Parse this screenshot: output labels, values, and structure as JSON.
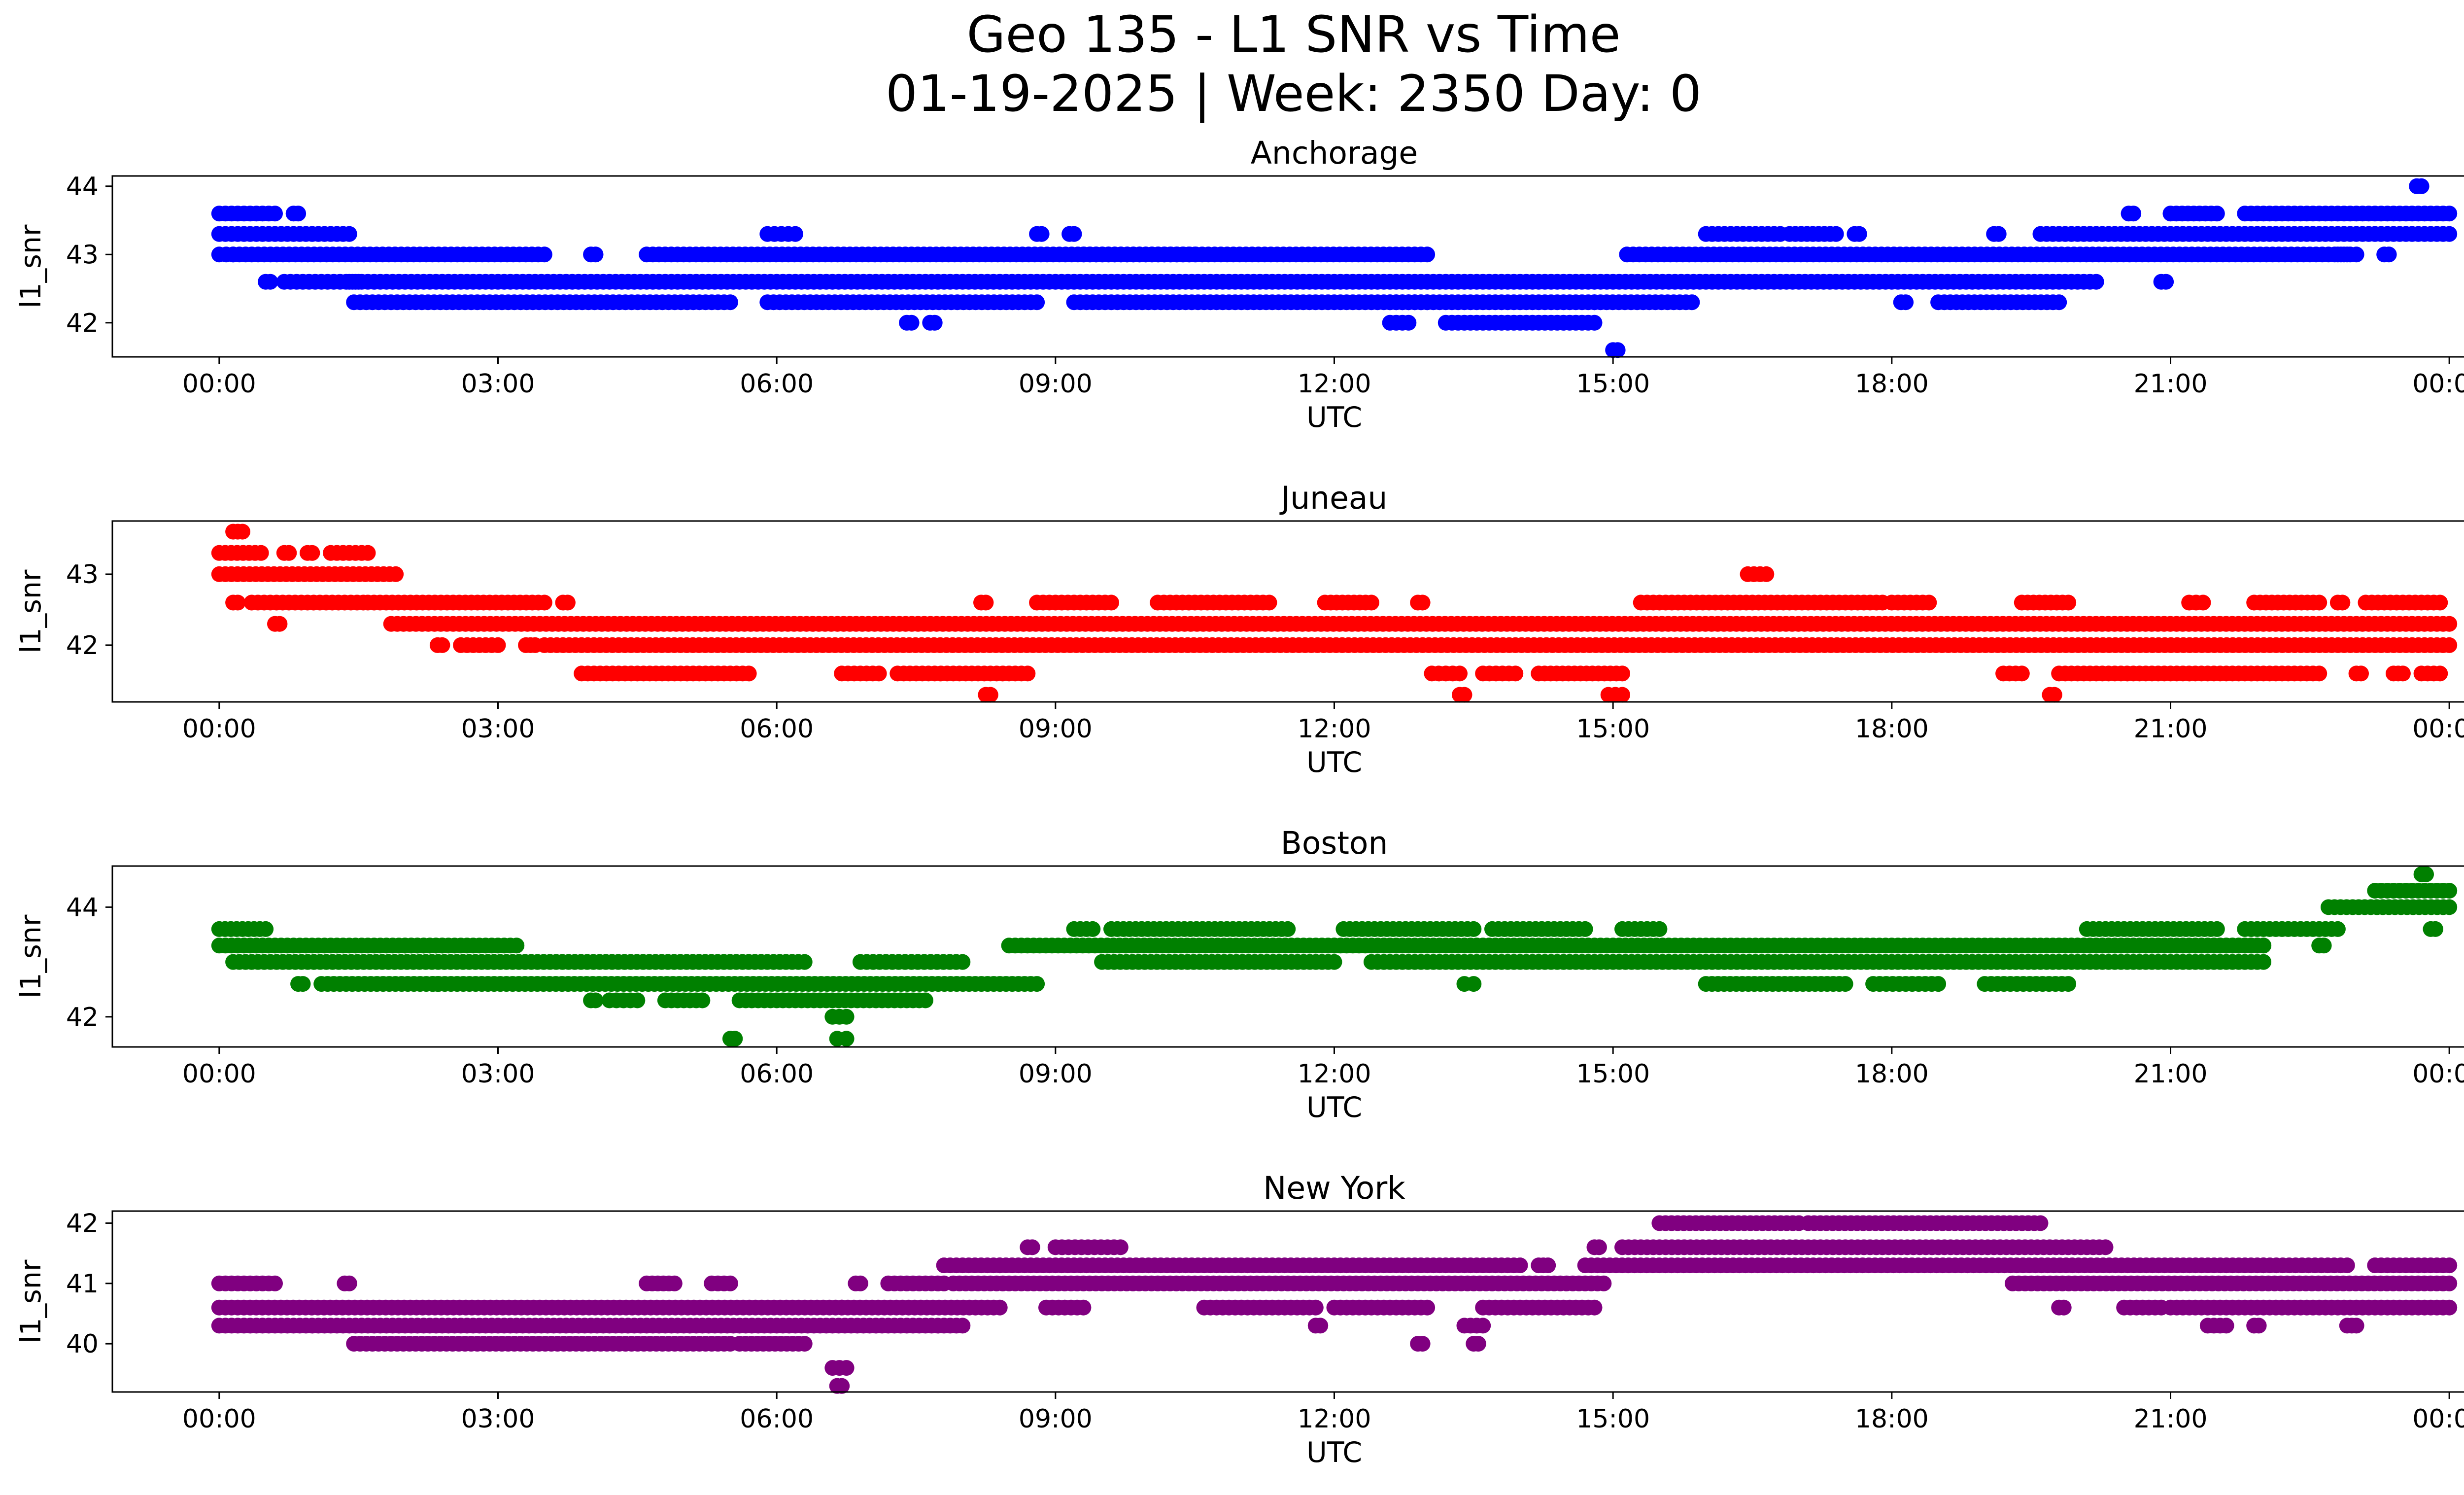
{
  "figure": {
    "title_line1": "Geo 135 - L1 SNR vs Time",
    "title_line2": "01-19-2025 | Week: 2350 Day: 0"
  },
  "chart_data": [
    {
      "type": "scatter",
      "title": "Anchorage",
      "xlabel": "UTC",
      "ylabel": "l1_snr",
      "color": "#0000ff",
      "x_unit": "hours UTC on 01-19-2025 (24 = 00:00 next day)",
      "xlim_hours": [
        -1.15,
        25.15
      ],
      "ylim": [
        41.5,
        44.15
      ],
      "xticks": [
        "00:00",
        "03:00",
        "06:00",
        "09:00",
        "12:00",
        "15:00",
        "18:00",
        "21:00",
        "00:00"
      ],
      "yticks": [
        42,
        43,
        44
      ],
      "segments": [
        [
          0.0,
          0.15,
          43.0
        ],
        [
          0.0,
          1.4,
          43.3
        ],
        [
          0.0,
          0.6,
          43.6
        ],
        [
          0.8,
          0.85,
          43.6
        ],
        [
          0.15,
          3.5,
          43.0
        ],
        [
          0.5,
          0.55,
          42.6
        ],
        [
          0.7,
          1.5,
          42.6
        ],
        [
          1.4,
          20.2,
          42.6
        ],
        [
          1.45,
          5.5,
          42.3
        ],
        [
          4.0,
          4.05,
          43.0
        ],
        [
          4.6,
          10.5,
          43.0
        ],
        [
          5.9,
          6.2,
          43.3
        ],
        [
          5.9,
          8.8,
          42.3
        ],
        [
          9.2,
          13.0,
          42.3
        ],
        [
          9.3,
          13.0,
          43.0
        ],
        [
          8.8,
          8.85,
          43.3
        ],
        [
          9.15,
          9.2,
          43.3
        ],
        [
          7.4,
          7.45,
          42.0
        ],
        [
          7.65,
          7.7,
          42.0
        ],
        [
          12.6,
          14.8,
          42.3
        ],
        [
          12.6,
          12.8,
          42.0
        ],
        [
          13.2,
          14.8,
          42.0
        ],
        [
          15.0,
          15.05,
          41.6
        ],
        [
          14.8,
          15.85,
          42.3
        ],
        [
          15.15,
          22.9,
          43.0
        ],
        [
          16.0,
          16.8,
          43.3
        ],
        [
          16.9,
          17.4,
          43.3
        ],
        [
          17.6,
          17.65,
          43.3
        ],
        [
          18.1,
          18.15,
          42.3
        ],
        [
          18.5,
          19.8,
          42.3
        ],
        [
          19.1,
          19.15,
          43.3
        ],
        [
          19.6,
          24.0,
          43.3
        ],
        [
          20.55,
          20.6,
          43.6
        ],
        [
          20.9,
          20.95,
          42.6
        ],
        [
          21.0,
          21.5,
          43.6
        ],
        [
          21.8,
          24.0,
          43.6
        ],
        [
          22.8,
          23.0,
          43.0
        ],
        [
          23.3,
          23.35,
          43.0
        ],
        [
          23.65,
          23.7,
          44.0
        ]
      ]
    },
    {
      "type": "scatter",
      "title": "Juneau",
      "xlabel": "UTC",
      "ylabel": "l1_snr",
      "color": "#ff0000",
      "x_unit": "hours UTC on 01-19-2025 (24 = 00:00 next day)",
      "xlim_hours": [
        -1.15,
        25.15
      ],
      "ylim": [
        41.2,
        43.75
      ],
      "xticks": [
        "00:00",
        "03:00",
        "06:00",
        "09:00",
        "12:00",
        "15:00",
        "18:00",
        "21:00",
        "00:00"
      ],
      "yticks": [
        42,
        43
      ],
      "segments": [
        [
          0.0,
          0.45,
          43.3
        ],
        [
          0.0,
          1.9,
          43.0
        ],
        [
          0.15,
          0.25,
          43.6
        ],
        [
          0.15,
          0.2,
          42.6
        ],
        [
          0.35,
          1.55,
          42.6
        ],
        [
          0.6,
          0.65,
          42.3
        ],
        [
          0.7,
          0.75,
          43.3
        ],
        [
          0.95,
          1.0,
          43.3
        ],
        [
          1.2,
          1.6,
          43.3
        ],
        [
          1.6,
          3.5,
          42.6
        ],
        [
          1.85,
          24.0,
          42.3
        ],
        [
          2.35,
          2.4,
          42.0
        ],
        [
          2.6,
          3.0,
          42.0
        ],
        [
          3.3,
          3.4,
          42.0
        ],
        [
          3.7,
          3.75,
          42.6
        ],
        [
          3.5,
          24.0,
          42.0
        ],
        [
          3.9,
          5.7,
          41.6
        ],
        [
          6.7,
          7.1,
          41.6
        ],
        [
          7.3,
          8.7,
          41.6
        ],
        [
          8.25,
          8.3,
          41.3
        ],
        [
          8.2,
          8.25,
          42.6
        ],
        [
          8.8,
          9.6,
          42.6
        ],
        [
          10.1,
          11.3,
          42.6
        ],
        [
          11.9,
          12.4,
          42.6
        ],
        [
          12.9,
          12.95,
          42.6
        ],
        [
          13.05,
          13.35,
          41.6
        ],
        [
          13.35,
          13.4,
          41.3
        ],
        [
          13.6,
          13.95,
          41.6
        ],
        [
          14.2,
          15.1,
          41.6
        ],
        [
          14.95,
          15.1,
          41.3
        ],
        [
          15.3,
          17.9,
          42.6
        ],
        [
          16.45,
          16.65,
          43.0
        ],
        [
          18.0,
          18.4,
          42.6
        ],
        [
          19.2,
          19.4,
          41.6
        ],
        [
          19.4,
          19.9,
          42.6
        ],
        [
          19.7,
          19.75,
          41.3
        ],
        [
          19.8,
          22.6,
          41.6
        ],
        [
          21.2,
          21.35,
          42.6
        ],
        [
          21.9,
          22.6,
          42.6
        ],
        [
          22.8,
          22.85,
          42.6
        ],
        [
          23.1,
          23.9,
          42.6
        ],
        [
          23.0,
          23.05,
          41.6
        ],
        [
          23.4,
          23.5,
          41.6
        ],
        [
          23.7,
          23.9,
          41.6
        ]
      ]
    },
    {
      "type": "scatter",
      "title": "Boston",
      "xlabel": "UTC",
      "ylabel": "l1_snr",
      "color": "#008000",
      "x_unit": "hours UTC on 01-19-2025 (24 = 00:00 next day)",
      "xlim_hours": [
        -1.15,
        25.15
      ],
      "ylim": [
        41.45,
        44.75
      ],
      "xticks": [
        "00:00",
        "03:00",
        "06:00",
        "09:00",
        "12:00",
        "15:00",
        "18:00",
        "21:00",
        "00:00"
      ],
      "yticks": [
        42,
        44
      ],
      "segments": [
        [
          0.0,
          0.5,
          43.6
        ],
        [
          0.0,
          3.2,
          43.3
        ],
        [
          0.15,
          6.3,
          43.0
        ],
        [
          0.85,
          0.9,
          42.6
        ],
        [
          1.1,
          8.8,
          42.6
        ],
        [
          2.0,
          2.4,
          43.3
        ],
        [
          2.3,
          2.35,
          42.6
        ],
        [
          4.0,
          4.05,
          42.3
        ],
        [
          4.2,
          4.5,
          42.3
        ],
        [
          4.8,
          5.2,
          42.3
        ],
        [
          5.5,
          5.55,
          41.6
        ],
        [
          5.6,
          7.6,
          42.3
        ],
        [
          6.6,
          6.75,
          42.0
        ],
        [
          6.65,
          6.75,
          41.6
        ],
        [
          6.9,
          8.0,
          43.0
        ],
        [
          8.5,
          12.0,
          43.3
        ],
        [
          9.2,
          9.4,
          43.6
        ],
        [
          9.5,
          12.0,
          43.0
        ],
        [
          9.6,
          11.5,
          43.6
        ],
        [
          12.0,
          22.0,
          43.3
        ],
        [
          12.1,
          13.5,
          43.6
        ],
        [
          13.4,
          13.5,
          42.6
        ],
        [
          12.4,
          22.0,
          43.0
        ],
        [
          13.7,
          14.7,
          43.6
        ],
        [
          15.1,
          15.5,
          43.6
        ],
        [
          16.0,
          17.5,
          42.6
        ],
        [
          17.8,
          18.5,
          42.6
        ],
        [
          19.0,
          19.9,
          42.6
        ],
        [
          19.8,
          22.0,
          43.3
        ],
        [
          20.1,
          21.5,
          43.6
        ],
        [
          21.8,
          22.8,
          43.6
        ],
        [
          22.6,
          22.65,
          43.3
        ],
        [
          22.7,
          24.0,
          44.0
        ],
        [
          23.2,
          24.0,
          44.3
        ],
        [
          23.8,
          23.85,
          43.6
        ],
        [
          23.7,
          23.75,
          44.6
        ]
      ]
    },
    {
      "type": "scatter",
      "title": "New York",
      "xlabel": "UTC",
      "ylabel": "l1_snr",
      "color": "#800080",
      "x_unit": "hours UTC on 01-19-2025 (24 = 00:00 next day)",
      "xlim_hours": [
        -1.15,
        25.15
      ],
      "ylim": [
        39.2,
        42.2
      ],
      "xticks": [
        "00:00",
        "03:00",
        "06:00",
        "09:00",
        "12:00",
        "15:00",
        "18:00",
        "21:00",
        "00:00"
      ],
      "yticks": [
        40,
        41,
        42
      ],
      "segments": [
        [
          0.0,
          0.6,
          41.0
        ],
        [
          0.0,
          6.7,
          40.6
        ],
        [
          0.0,
          8.0,
          40.3
        ],
        [
          1.35,
          1.4,
          41.0
        ],
        [
          1.45,
          5.5,
          40.0
        ],
        [
          4.6,
          4.9,
          41.0
        ],
        [
          5.3,
          5.5,
          41.0
        ],
        [
          5.6,
          6.3,
          40.0
        ],
        [
          6.6,
          6.75,
          39.6
        ],
        [
          6.65,
          6.7,
          39.3
        ],
        [
          6.85,
          6.9,
          41.0
        ],
        [
          6.7,
          8.4,
          40.6
        ],
        [
          7.2,
          7.8,
          41.0
        ],
        [
          7.8,
          8.4,
          41.3
        ],
        [
          7.9,
          14.9,
          41.0
        ],
        [
          8.4,
          14.0,
          41.3
        ],
        [
          8.7,
          8.75,
          41.6
        ],
        [
          9.0,
          9.7,
          41.6
        ],
        [
          8.9,
          9.3,
          40.6
        ],
        [
          10.6,
          11.8,
          40.6
        ],
        [
          11.8,
          11.85,
          40.3
        ],
        [
          12.0,
          13.0,
          40.6
        ],
        [
          12.9,
          12.95,
          40.0
        ],
        [
          13.4,
          13.6,
          40.3
        ],
        [
          13.5,
          13.55,
          40.0
        ],
        [
          13.6,
          14.8,
          40.6
        ],
        [
          14.2,
          14.3,
          41.3
        ],
        [
          14.7,
          22.0,
          41.3
        ],
        [
          14.8,
          14.85,
          41.6
        ],
        [
          15.1,
          20.3,
          41.6
        ],
        [
          15.5,
          17.0,
          42.0
        ],
        [
          17.1,
          19.6,
          42.0
        ],
        [
          19.3,
          24.0,
          41.0
        ],
        [
          19.8,
          19.85,
          40.6
        ],
        [
          20.5,
          20.9,
          40.6
        ],
        [
          21.0,
          24.0,
          40.6
        ],
        [
          21.4,
          21.6,
          40.3
        ],
        [
          21.9,
          21.95,
          40.3
        ],
        [
          22.0,
          22.9,
          41.3
        ],
        [
          22.9,
          23.0,
          40.3
        ],
        [
          23.2,
          24.0,
          41.3
        ]
      ]
    }
  ]
}
